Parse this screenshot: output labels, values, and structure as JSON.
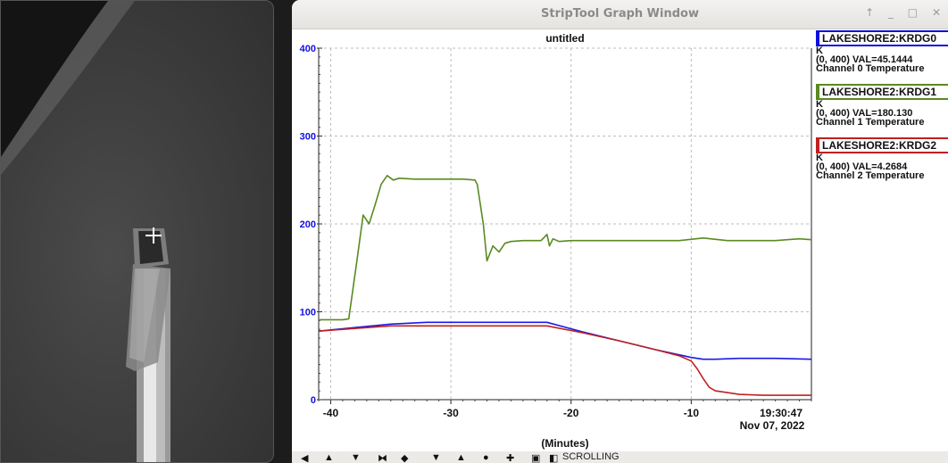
{
  "window": {
    "title": "StripTool Graph Window",
    "controls": "↑ _ □ ✕"
  },
  "graph": {
    "title": "untitled",
    "xlabel": "(Minutes)",
    "timestamp_time": "19:30:47",
    "timestamp_date": "Nov 07, 2022",
    "y_ticks": [
      "0",
      "100",
      "200",
      "300",
      "400"
    ],
    "x_ticks": [
      "-40",
      "-30",
      "-20",
      "-10"
    ]
  },
  "legend": [
    {
      "name": "LAKESHORE2:KRDG0",
      "unit": "K",
      "range_val": "(0, 400) VAL=45.1444",
      "desc": "Channel 0 Temperature",
      "color": "#1010e0"
    },
    {
      "name": "LAKESHORE2:KRDG1",
      "unit": "K",
      "range_val": "(0, 400) VAL=180.130",
      "desc": "Channel 1 Temperature",
      "color": "#5a8a20"
    },
    {
      "name": "LAKESHORE2:KRDG2",
      "unit": "K",
      "range_val": "(0, 400) VAL=4.2684",
      "desc": "Channel 2 Temperature",
      "color": "#c02020"
    }
  ],
  "toolbar": {
    "status": "SCROLLING",
    "icons": [
      "arrow-left-icon",
      "arrow-up-icon",
      "arrow-down-icon",
      "zoom-in-x-icon",
      "zoom-out-x-icon",
      "zoom-in-y-icon",
      "zoom-out-y-icon",
      "pan-icon",
      "reset-icon",
      "print-icon",
      "config-icon"
    ]
  },
  "chart_data": {
    "type": "line",
    "title": "untitled",
    "xlabel": "(Minutes)",
    "ylabel": "",
    "xlim": [
      -41,
      0
    ],
    "ylim": [
      0,
      400
    ],
    "grid": true,
    "series": [
      {
        "name": "LAKESHORE2:KRDG0",
        "color": "#1a1ae6",
        "x": [
          -41,
          -38,
          -35,
          -32,
          -29,
          -26,
          -22,
          -19,
          -16,
          -13,
          -10,
          -9,
          -8,
          -6,
          -3,
          0
        ],
        "y": [
          78,
          82,
          86,
          88,
          88,
          88,
          88,
          77,
          67,
          57,
          48,
          46,
          46,
          47,
          47,
          46
        ]
      },
      {
        "name": "LAKESHORE2:KRDG1",
        "color": "#5a8a20",
        "x": [
          -41,
          -39,
          -38.5,
          -37.8,
          -37.3,
          -36.8,
          -36.3,
          -35.8,
          -35.3,
          -34.8,
          -34.3,
          -33,
          -31,
          -29,
          -28,
          -27.8,
          -27.3,
          -27,
          -26.5,
          -26,
          -25.5,
          -25,
          -24,
          -22.5,
          -22,
          -21.8,
          -21.5,
          -21,
          -20,
          -17,
          -14,
          -11,
          -9,
          -7,
          -5,
          -3,
          -1,
          0
        ],
        "y": [
          91,
          91,
          92,
          160,
          210,
          200,
          222,
          245,
          255,
          250,
          252,
          251,
          251,
          251,
          250,
          245,
          200,
          158,
          175,
          168,
          178,
          180,
          181,
          181,
          188,
          175,
          183,
          180,
          181,
          181,
          181,
          181,
          184,
          181,
          181,
          181,
          183,
          182
        ]
      },
      {
        "name": "LAKESHORE2:KRDG2",
        "color": "#c02020",
        "x": [
          -41,
          -38,
          -35,
          -32,
          -29,
          -26,
          -22,
          -19,
          -16,
          -13,
          -11,
          -10,
          -9.5,
          -9,
          -8.5,
          -8,
          -7,
          -6,
          -4,
          -2,
          0
        ],
        "y": [
          78,
          81,
          84,
          84,
          84,
          84,
          84,
          76,
          67,
          57,
          50,
          44,
          35,
          24,
          14,
          10,
          8,
          6,
          5,
          5,
          5
        ]
      }
    ]
  }
}
